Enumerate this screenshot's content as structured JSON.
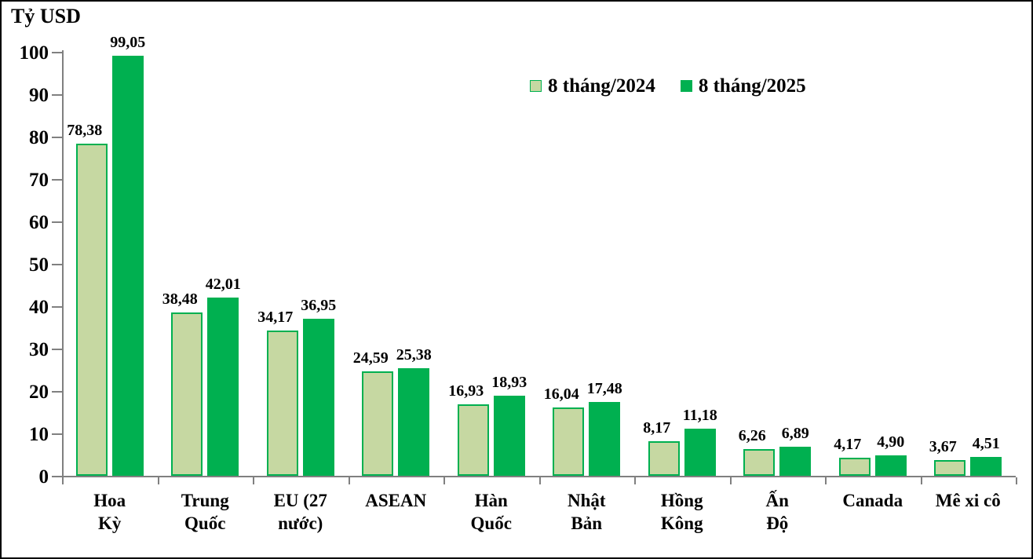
{
  "frame": {
    "background": "#ffffff",
    "border_color": "#000000"
  },
  "chart_data": {
    "type": "bar",
    "title": "Tỷ USD",
    "ylabel": "Tỷ USD",
    "xlabel": "",
    "ylim": [
      0,
      100
    ],
    "ytick_step": 10,
    "ytick_labels": [
      "0",
      "10",
      "20",
      "30",
      "40",
      "50",
      "60",
      "70",
      "80",
      "90",
      "100"
    ],
    "grid": false,
    "legend_position": "top-center",
    "axis_color": "#808080",
    "text_color": "#000000",
    "categories": [
      "Hoa\nKỳ",
      "Trung\nQuốc",
      "EU (27\nnước)",
      "ASEAN",
      "Hàn\nQuốc",
      "Nhật\nBản",
      "Hồng\nKông",
      "Ấn\nĐộ",
      "Canada",
      "Mê xi cô"
    ],
    "series": [
      {
        "name": "8 tháng/2024",
        "fill_color": "#c6d8a2",
        "border_color": "#00b050",
        "values": [
          78.38,
          38.48,
          34.17,
          24.59,
          16.93,
          16.04,
          8.17,
          6.26,
          4.17,
          3.67
        ],
        "labels": [
          "78,38",
          "38,48",
          "34,17",
          "24,59",
          "16,93",
          "16,04",
          "8,17",
          "6,26",
          "4,17",
          "3,67"
        ]
      },
      {
        "name": "8 tháng/2025",
        "fill_color": "#00b050",
        "border_color": "#00b050",
        "values": [
          99.05,
          42.01,
          36.95,
          25.38,
          18.93,
          17.48,
          11.18,
          6.89,
          4.9,
          4.51
        ],
        "labels": [
          "99,05",
          "42,01",
          "36,95",
          "25,38",
          "18,93",
          "17,48",
          "11,18",
          "6,89",
          "4,90",
          "4,51"
        ]
      }
    ]
  }
}
